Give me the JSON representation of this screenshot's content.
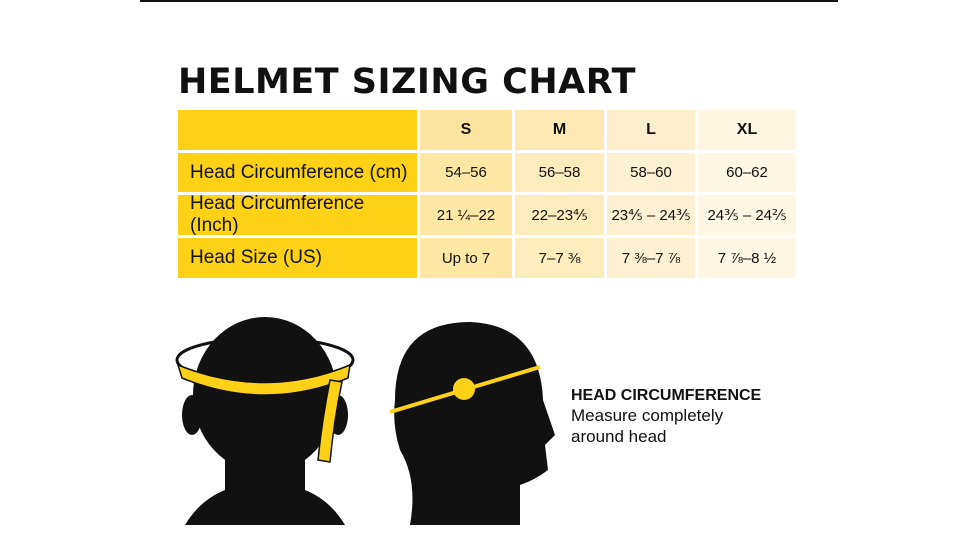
{
  "header": {
    "title": "HELMET SIZING CHART"
  },
  "table": {
    "columns": [
      "S",
      "M",
      "L",
      "XL"
    ],
    "rows": [
      {
        "label": "Head Circumference (cm)",
        "cells": [
          "54–56",
          "56–58",
          "58–60",
          "60–62"
        ]
      },
      {
        "label": "Head Circumference (Inch)",
        "cells": [
          "21 ¼–22",
          "22–23⅘",
          "23⅘ – 24⅗",
          "24⅗ – 24⅖"
        ]
      },
      {
        "label": "Head Size (US)",
        "cells": [
          "Up to 7",
          "7–7 ⅜",
          "7 ⅜–7 ⅞",
          "7 ⅞–8 ½"
        ]
      }
    ]
  },
  "caption": {
    "title": "HEAD CIRCUMFERENCE",
    "text": "Measure completely around head"
  }
}
